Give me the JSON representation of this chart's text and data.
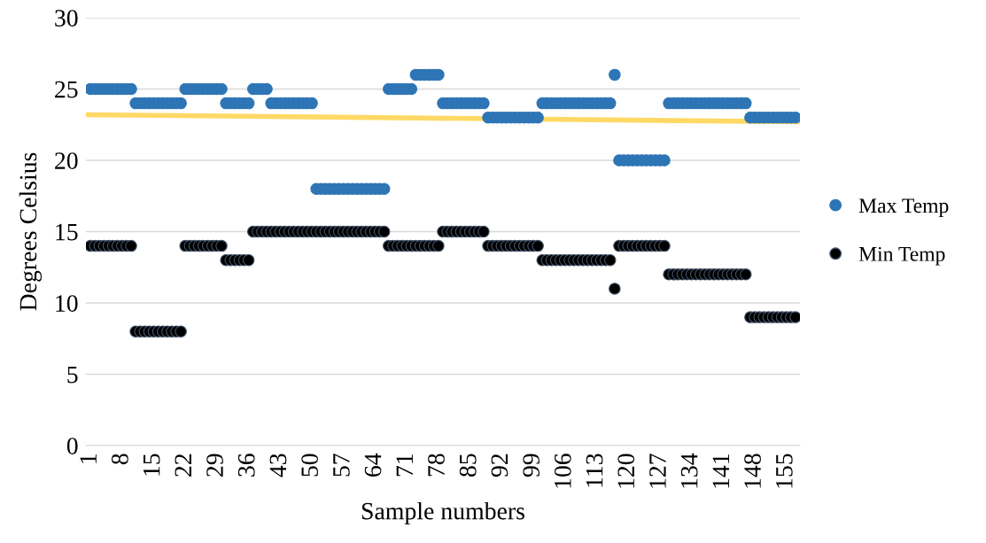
{
  "chart_data": {
    "type": "scatter",
    "xlabel": "Sample numbers",
    "ylabel": "Degrees Celsius",
    "x": [
      1,
      2,
      3,
      4,
      5,
      6,
      7,
      8,
      9,
      10,
      11,
      12,
      13,
      14,
      15,
      16,
      17,
      18,
      19,
      20,
      21,
      22,
      23,
      24,
      25,
      26,
      27,
      28,
      29,
      30,
      31,
      32,
      33,
      34,
      35,
      36,
      37,
      38,
      39,
      40,
      41,
      42,
      43,
      44,
      45,
      46,
      47,
      48,
      49,
      50,
      51,
      52,
      53,
      54,
      55,
      56,
      57,
      58,
      59,
      60,
      61,
      62,
      63,
      64,
      65,
      66,
      67,
      68,
      69,
      70,
      71,
      72,
      73,
      74,
      75,
      76,
      77,
      78,
      79,
      80,
      81,
      82,
      83,
      84,
      85,
      86,
      87,
      88,
      89,
      90,
      91,
      92,
      93,
      94,
      95,
      96,
      97,
      98,
      99,
      100,
      101,
      102,
      103,
      104,
      105,
      106,
      107,
      108,
      109,
      110,
      111,
      112,
      113,
      114,
      115,
      116,
      117,
      118,
      119,
      120,
      121,
      122,
      123,
      124,
      125,
      126,
      127,
      128,
      129,
      130,
      131,
      132,
      133,
      134,
      135,
      136,
      137,
      138,
      139,
      140,
      141,
      142,
      143,
      144,
      145,
      146,
      147,
      148,
      149,
      150,
      151,
      152,
      153,
      154,
      155,
      156,
      157
    ],
    "series": [
      {
        "name": "Max Temp",
        "color": "#2e75b6",
        "values": [
          25,
          25,
          25,
          25,
          25,
          25,
          25,
          25,
          25,
          25,
          24,
          24,
          24,
          24,
          24,
          24,
          24,
          24,
          24,
          24,
          24,
          25,
          25,
          25,
          25,
          25,
          25,
          25,
          25,
          25,
          24,
          24,
          24,
          24,
          24,
          24,
          25,
          25,
          25,
          25,
          24,
          24,
          24,
          24,
          24,
          24,
          24,
          24,
          24,
          24,
          18,
          18,
          18,
          18,
          18,
          18,
          18,
          18,
          18,
          18,
          18,
          18,
          18,
          18,
          18,
          18,
          25,
          25,
          25,
          25,
          25,
          25,
          26,
          26,
          26,
          26,
          26,
          26,
          24,
          24,
          24,
          24,
          24,
          24,
          24,
          24,
          24,
          24,
          23,
          23,
          23,
          23,
          23,
          23,
          23,
          23,
          23,
          23,
          23,
          23,
          24,
          24,
          24,
          24,
          24,
          24,
          24,
          24,
          24,
          24,
          24,
          24,
          24,
          24,
          24,
          24,
          26,
          20,
          20,
          20,
          20,
          20,
          20,
          20,
          20,
          20,
          20,
          20,
          24,
          24,
          24,
          24,
          24,
          24,
          24,
          24,
          24,
          24,
          24,
          24,
          24,
          24,
          24,
          24,
          24,
          24,
          23,
          23,
          23,
          23,
          23,
          23,
          23,
          23,
          23,
          23,
          23
        ]
      },
      {
        "name": "Min Temp",
        "color": "#000000",
        "values": [
          14,
          14,
          14,
          14,
          14,
          14,
          14,
          14,
          14,
          14,
          8,
          8,
          8,
          8,
          8,
          8,
          8,
          8,
          8,
          8,
          8,
          14,
          14,
          14,
          14,
          14,
          14,
          14,
          14,
          14,
          13,
          13,
          13,
          13,
          13,
          13,
          15,
          15,
          15,
          15,
          15,
          15,
          15,
          15,
          15,
          15,
          15,
          15,
          15,
          15,
          15,
          15,
          15,
          15,
          15,
          15,
          15,
          15,
          15,
          15,
          15,
          15,
          15,
          15,
          15,
          15,
          14,
          14,
          14,
          14,
          14,
          14,
          14,
          14,
          14,
          14,
          14,
          14,
          15,
          15,
          15,
          15,
          15,
          15,
          15,
          15,
          15,
          15,
          14,
          14,
          14,
          14,
          14,
          14,
          14,
          14,
          14,
          14,
          14,
          14,
          13,
          13,
          13,
          13,
          13,
          13,
          13,
          13,
          13,
          13,
          13,
          13,
          13,
          13,
          13,
          13,
          11,
          14,
          14,
          14,
          14,
          14,
          14,
          14,
          14,
          14,
          14,
          14,
          12,
          12,
          12,
          12,
          12,
          12,
          12,
          12,
          12,
          12,
          12,
          12,
          12,
          12,
          12,
          12,
          12,
          12,
          9,
          9,
          9,
          9,
          9,
          9,
          9,
          9,
          9,
          9,
          9
        ]
      },
      {
        "type": "line",
        "color": "#ffd966",
        "marker": "none",
        "x": [
          0,
          158
        ],
        "values": [
          23.2,
          22.7
        ]
      }
    ],
    "xlim": [
      0,
      158
    ],
    "xticks": [
      1,
      8,
      15,
      22,
      29,
      36,
      43,
      50,
      57,
      64,
      71,
      78,
      85,
      92,
      99,
      106,
      113,
      120,
      127,
      134,
      141,
      148,
      155
    ],
    "ylim": [
      0,
      30
    ],
    "yticks": [
      0,
      5,
      10,
      15,
      20,
      25,
      30
    ],
    "grid": "y",
    "legend": "right",
    "marker": "circle"
  }
}
